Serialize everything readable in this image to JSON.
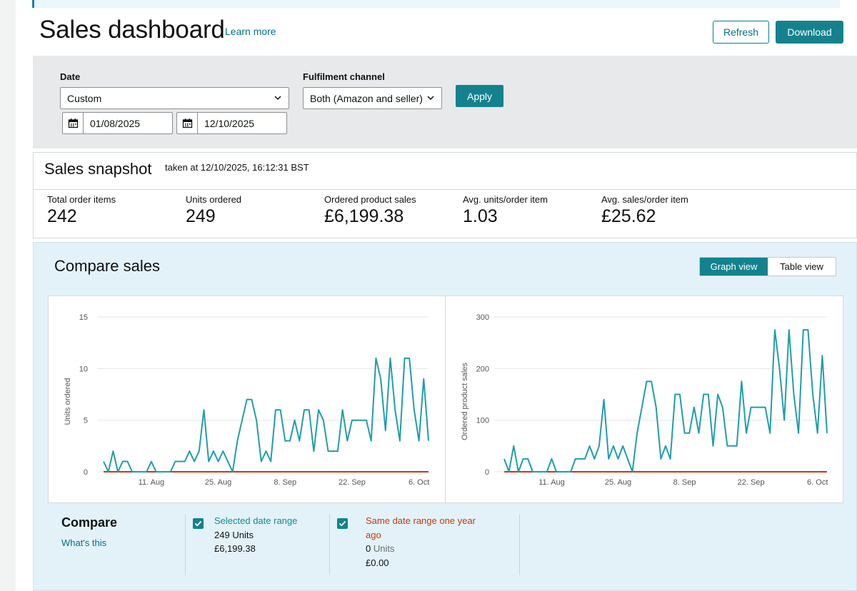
{
  "page": {
    "title": "Sales dashboard",
    "learn_more": "Learn more",
    "refresh_label": "Refresh",
    "download_label": "Download"
  },
  "filters": {
    "date_label": "Date",
    "date_value": "Custom",
    "start_date": "01/08/2025",
    "end_date": "12/10/2025",
    "channel_label": "Fulfilment channel",
    "channel_value": "Both (Amazon and seller)",
    "apply_label": "Apply"
  },
  "snapshot": {
    "title": "Sales snapshot",
    "taken_at": "taken at 12/10/2025, 16:12:31 BST",
    "metrics": [
      {
        "label": "Total order items",
        "value": "242"
      },
      {
        "label": "Units ordered",
        "value": "249"
      },
      {
        "label": "Ordered product sales",
        "value": "£6,199.38"
      },
      {
        "label": "Avg. units/order item",
        "value": "1.03"
      },
      {
        "label": "Avg. sales/order item",
        "value": "£25.62"
      }
    ]
  },
  "compare": {
    "title": "Compare sales",
    "graph_view": "Graph view",
    "table_view": "Table view",
    "compare_label": "Compare",
    "whats_this": "What's this",
    "selected": {
      "title": "Selected date range",
      "units_value": "249",
      "units_word": "Units",
      "sales": "£6,199.38"
    },
    "previous": {
      "title_line1": "Same date range one year",
      "title_line2": "ago",
      "units_value": "0",
      "units_word": "Units",
      "sales": "£0.00"
    }
  },
  "colors": {
    "accent": "#14828e",
    "line_current": "#1f9ea8",
    "line_previous": "#d13212"
  },
  "chart_data": [
    {
      "type": "line",
      "title": "",
      "xlabel": "",
      "ylabel": "Units ordered",
      "ylim": [
        0,
        15
      ],
      "yticks": [
        0,
        5,
        10,
        15
      ],
      "x_tick_labels": [
        "11. Aug",
        "25. Aug",
        "8. Sep",
        "22. Sep",
        "6. Oct"
      ],
      "x_tick_day_index": [
        10,
        24,
        38,
        52,
        66
      ],
      "series": [
        {
          "name": "Selected date range",
          "values": [
            1,
            0,
            2,
            0,
            1,
            1,
            0,
            0,
            0,
            0,
            1,
            0,
            0,
            0,
            0,
            1,
            1,
            1,
            2,
            1,
            2,
            6,
            1,
            2,
            1,
            2,
            1,
            0,
            3,
            5,
            7,
            7,
            5,
            1,
            2,
            1,
            6,
            6,
            3,
            3,
            5,
            3,
            6,
            6,
            2,
            6,
            5,
            2,
            2,
            2,
            6,
            3,
            5,
            5,
            5,
            5,
            3,
            11,
            9,
            4,
            11,
            6,
            3,
            11,
            11,
            6,
            3,
            9,
            3
          ]
        },
        {
          "name": "Same date range one year ago",
          "values": [
            0,
            0,
            0,
            0,
            0,
            0,
            0,
            0,
            0,
            0,
            0,
            0,
            0,
            0,
            0,
            0,
            0,
            0,
            0,
            0,
            0,
            0,
            0,
            0,
            0,
            0,
            0,
            0,
            0,
            0,
            0,
            0,
            0,
            0,
            0,
            0,
            0,
            0,
            0,
            0,
            0,
            0,
            0,
            0,
            0,
            0,
            0,
            0,
            0,
            0,
            0,
            0,
            0,
            0,
            0,
            0,
            0,
            0,
            0,
            0,
            0,
            0,
            0,
            0,
            0,
            0,
            0,
            0,
            0
          ]
        }
      ]
    },
    {
      "type": "line",
      "title": "",
      "xlabel": "",
      "ylabel": "Ordered product sales",
      "ylim": [
        0,
        300
      ],
      "yticks": [
        0,
        100,
        200,
        300
      ],
      "x_tick_labels": [
        "11. Aug",
        "25. Aug",
        "8. Sep",
        "22. Sep",
        "6. Oct"
      ],
      "x_tick_day_index": [
        10,
        24,
        38,
        52,
        66
      ],
      "series": [
        {
          "name": "Selected date range",
          "values": [
            25,
            0,
            50,
            0,
            25,
            25,
            0,
            0,
            0,
            0,
            25,
            0,
            0,
            0,
            0,
            25,
            25,
            25,
            50,
            25,
            50,
            140,
            25,
            50,
            25,
            50,
            25,
            0,
            75,
            125,
            175,
            175,
            125,
            25,
            50,
            25,
            150,
            150,
            75,
            75,
            125,
            75,
            150,
            150,
            50,
            150,
            125,
            50,
            50,
            50,
            175,
            75,
            125,
            125,
            125,
            125,
            75,
            275,
            200,
            100,
            275,
            150,
            75,
            275,
            275,
            150,
            75,
            225,
            75
          ]
        },
        {
          "name": "Same date range one year ago",
          "values": [
            0,
            0,
            0,
            0,
            0,
            0,
            0,
            0,
            0,
            0,
            0,
            0,
            0,
            0,
            0,
            0,
            0,
            0,
            0,
            0,
            0,
            0,
            0,
            0,
            0,
            0,
            0,
            0,
            0,
            0,
            0,
            0,
            0,
            0,
            0,
            0,
            0,
            0,
            0,
            0,
            0,
            0,
            0,
            0,
            0,
            0,
            0,
            0,
            0,
            0,
            0,
            0,
            0,
            0,
            0,
            0,
            0,
            0,
            0,
            0,
            0,
            0,
            0,
            0,
            0,
            0,
            0,
            0,
            0
          ]
        }
      ]
    }
  ]
}
